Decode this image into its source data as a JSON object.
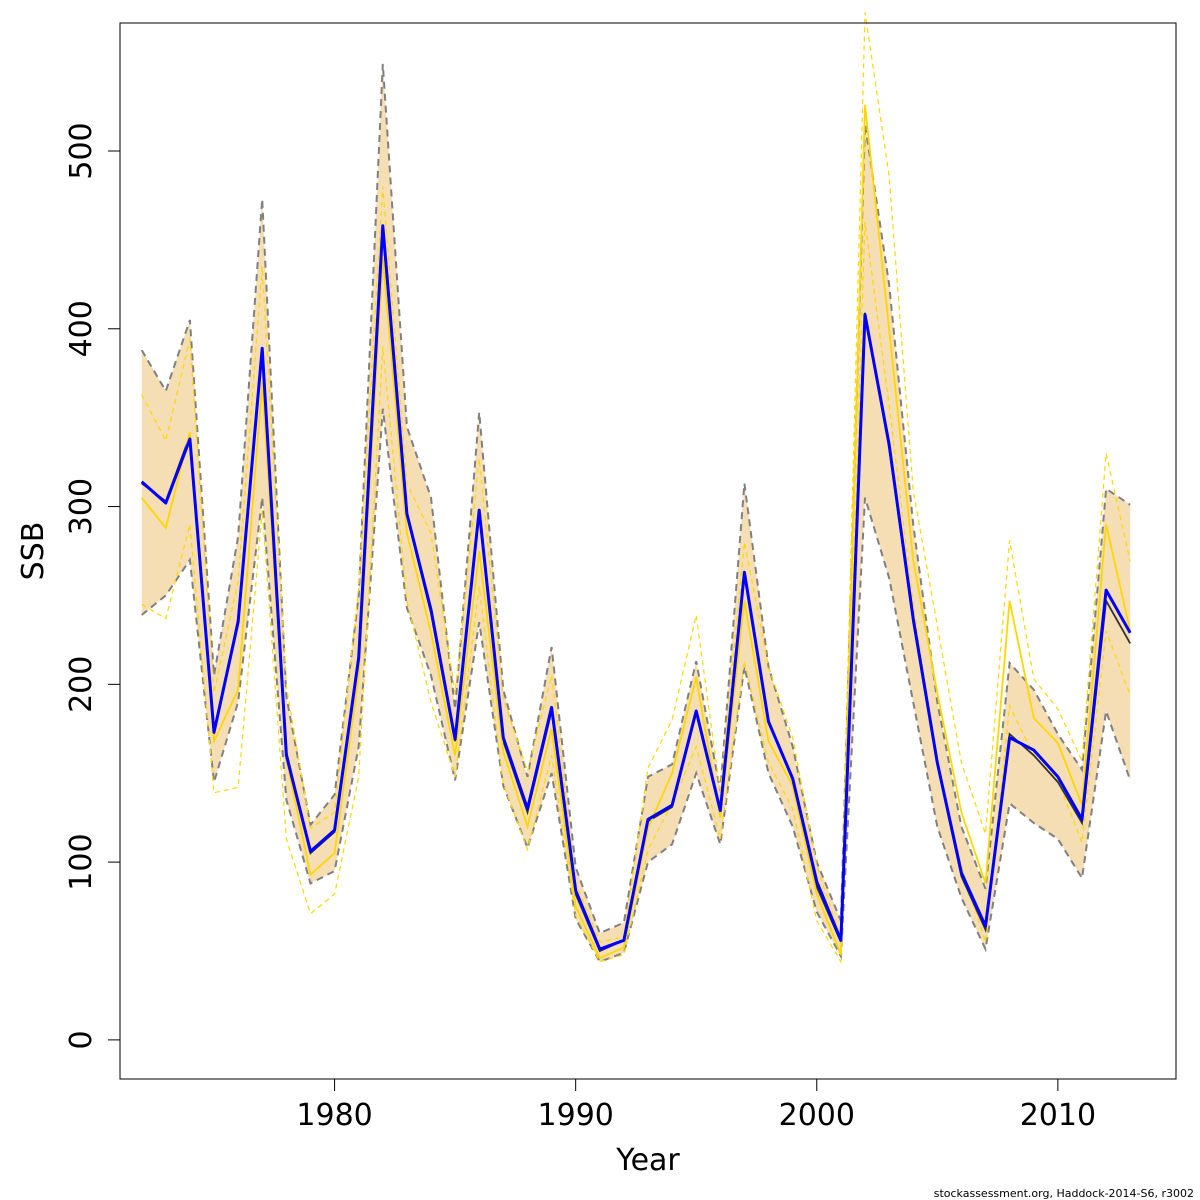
{
  "chart_data": {
    "type": "line",
    "title": "",
    "xlabel": "Year",
    "ylabel": "SSB",
    "xlim": [
      1971.1,
      2014.9
    ],
    "ylim": [
      -22,
      572
    ],
    "x_ticks": [
      1980,
      1990,
      2000,
      2010
    ],
    "x_tick_labels": [
      "1980",
      "1990",
      "2000",
      "2010"
    ],
    "y_ticks": [
      0,
      100,
      200,
      300,
      400,
      500
    ],
    "y_tick_labels": [
      "0",
      "100",
      "200",
      "300",
      "400",
      "500"
    ],
    "footer": "stockassessment.org, Haddock-2014-S6, r3002",
    "colors": {
      "band_fill": "#F5DEB3",
      "band_edge": "#808080",
      "base_line": "#333333",
      "main_line": "#0000FF",
      "alt_line": "#FFD700"
    },
    "x": [
      1972,
      1973,
      1974,
      1975,
      1976,
      1977,
      1978,
      1979,
      1980,
      1981,
      1982,
      1983,
      1984,
      1985,
      1986,
      1987,
      1988,
      1989,
      1990,
      1991,
      1992,
      1993,
      1994,
      1995,
      1996,
      1997,
      1998,
      1999,
      2000,
      2001,
      2002,
      2003,
      2004,
      2005,
      2006,
      2007,
      2008,
      2009,
      2010,
      2011,
      2012,
      2013
    ],
    "series": [
      {
        "name": "ci_low",
        "values": [
          239,
          250,
          270,
          145,
          190,
          305,
          135,
          88,
          95,
          165,
          355,
          243,
          205,
          146,
          235,
          143,
          108,
          150,
          68,
          44,
          49,
          100,
          110,
          150,
          110,
          210,
          150,
          120,
          72,
          47,
          305,
          260,
          190,
          120,
          80,
          51,
          133,
          122,
          113,
          91,
          185,
          146
        ]
      },
      {
        "name": "ci_high",
        "values": [
          388,
          365,
          405,
          205,
          283,
          473,
          193,
          121,
          138,
          250,
          549,
          345,
          305,
          186,
          353,
          197,
          148,
          221,
          97,
          60,
          66,
          148,
          155,
          213,
          140,
          313,
          210,
          165,
          100,
          67,
          515,
          425,
          290,
          190,
          120,
          85,
          212,
          197,
          172,
          152,
          310,
          301
        ]
      },
      {
        "name": "ssb_base",
        "values": [
          313,
          303,
          340,
          172,
          237,
          388,
          162,
          105,
          117,
          217,
          455,
          295,
          240,
          168,
          297,
          168,
          128,
          185,
          82,
          50,
          56,
          123,
          131,
          184,
          128,
          262,
          180,
          146,
          86,
          55,
          409,
          333,
          235,
          155,
          92,
          62,
          172,
          160,
          145,
          122,
          247,
          223
        ]
      },
      {
        "name": "ssb_estimate",
        "values": [
          314,
          302,
          338,
          173,
          235,
          389,
          160,
          106,
          118,
          215,
          458,
          296,
          242,
          169,
          298,
          170,
          130,
          187,
          84,
          51,
          56,
          124,
          132,
          185,
          129,
          263,
          179,
          147,
          89,
          56,
          408,
          335,
          237,
          156,
          94,
          64,
          170,
          163,
          148,
          124,
          253,
          229
        ]
      },
      {
        "name": "ssb_alt",
        "values": [
          305,
          288,
          342,
          168,
          197,
          370,
          158,
          93,
          105,
          205,
          440,
          285,
          229,
          160,
          275,
          162,
          120,
          175,
          75,
          46,
          52,
          119,
          150,
          204,
          125,
          247,
          168,
          143,
          82,
          48,
          526,
          400,
          270,
          195,
          128,
          88,
          247,
          181,
          167,
          132,
          290,
          230
        ]
      },
      {
        "name": "ssb_alt_ci_low",
        "values": [
          245,
          237,
          290,
          139,
          142,
          298,
          113,
          71,
          82,
          148,
          390,
          247,
          190,
          148,
          255,
          144,
          107,
          160,
          70,
          44,
          48,
          107,
          133,
          165,
          113,
          213,
          156,
          130,
          67,
          44,
          460,
          357,
          245,
          155,
          98,
          55,
          188,
          160,
          146,
          111,
          230,
          194
        ]
      },
      {
        "name": "ssb_alt_ci_high",
        "values": [
          363,
          337,
          394,
          195,
          258,
          435,
          199,
          119,
          128,
          255,
          480,
          313,
          285,
          195,
          327,
          192,
          151,
          205,
          88,
          55,
          58,
          153,
          180,
          239,
          139,
          280,
          210,
          170,
          98,
          57,
          578,
          486,
          309,
          233,
          156,
          116,
          281,
          203,
          186,
          157,
          330,
          269
        ]
      }
    ]
  }
}
